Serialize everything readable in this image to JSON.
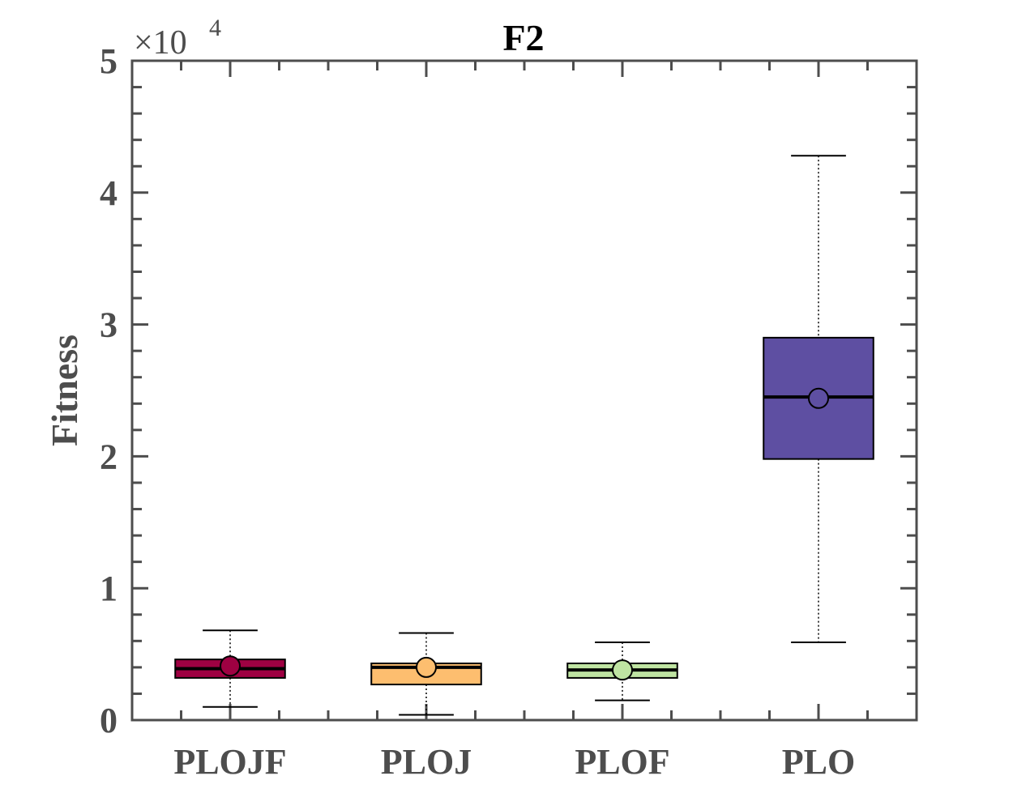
{
  "chart_data": {
    "type": "box",
    "title": "F2",
    "xlabel": "",
    "ylabel": "Fitness",
    "y_exponent_label": "×10",
    "y_exponent": "4",
    "ylim": [
      0,
      50000
    ],
    "y_ticks": [
      0,
      10000,
      20000,
      30000,
      40000,
      50000
    ],
    "y_tick_labels": [
      "0",
      "1",
      "2",
      "3",
      "4",
      "5"
    ],
    "grid": false,
    "categories": [
      "PLOJF",
      "PLOJ",
      "PLOF",
      "PLO"
    ],
    "boxes": [
      {
        "name": "PLOJF",
        "whisker_low": 1000,
        "q1": 3200,
        "median": 3900,
        "q3": 4600,
        "whisker_high": 6800,
        "mean": 4100,
        "color": "#9e0142"
      },
      {
        "name": "PLOJ",
        "whisker_low": 400,
        "q1": 2700,
        "median": 4000,
        "q3": 4300,
        "whisker_high": 6600,
        "mean": 4000,
        "color": "#fdbe6f"
      },
      {
        "name": "PLOF",
        "whisker_low": 1500,
        "q1": 3200,
        "median": 3800,
        "q3": 4300,
        "whisker_high": 5900,
        "mean": 3800,
        "color": "#bfe4a2"
      },
      {
        "name": "PLO",
        "whisker_low": 5900,
        "q1": 19800,
        "median": 24500,
        "q3": 29000,
        "whisker_high": 42800,
        "mean": 24400,
        "color": "#5e4fa2"
      }
    ]
  }
}
